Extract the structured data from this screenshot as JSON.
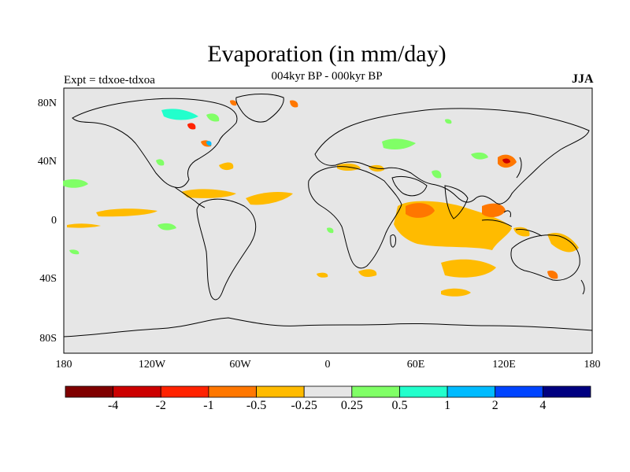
{
  "title": "Evaporation (in mm/day)",
  "subtitle": "004kyr BP - 000kyr BP",
  "experiment": "Expt = tdxoe-tdxoa",
  "season": "JJA",
  "lat_ticks": [
    "80N",
    "40N",
    "0",
    "40S",
    "80S"
  ],
  "lon_ticks": [
    "180",
    "120W",
    "60W",
    "0",
    "60E",
    "120E",
    "180"
  ],
  "colorbar": {
    "labels": [
      "-4",
      "-2",
      "-1",
      "-0.5",
      "-0.25",
      "0.25",
      "0.5",
      "1",
      "2",
      "4"
    ],
    "colors": [
      "#7f0000",
      "#cc0000",
      "#ff2200",
      "#ff7700",
      "#ffbb00",
      "#e6e6e6",
      "#80ff66",
      "#22ffcc",
      "#00bbff",
      "#0044ff",
      "#000080"
    ]
  },
  "background_color": "#e6e6e6"
}
